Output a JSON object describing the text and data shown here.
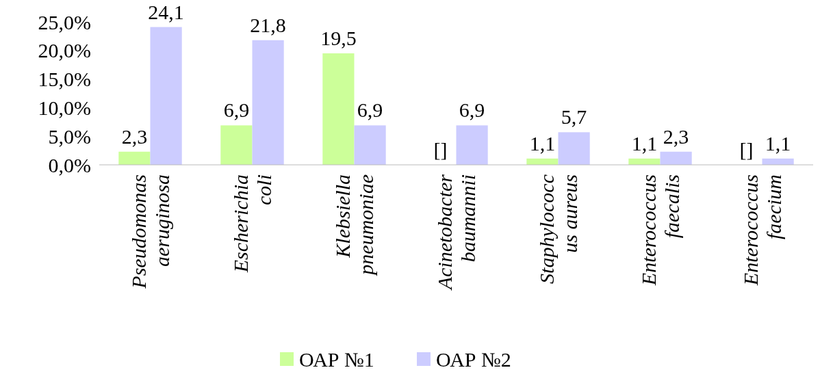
{
  "chart_data": {
    "type": "bar",
    "categories": [
      "Pseudomonas\naeruginosa",
      "Escherichia\ncoli",
      "Klebsiella\npneumoniae",
      "Acinetobacter\nbaumannii",
      "Staphylococc\nus aureus",
      "Enterococcus\nfaecalis",
      "Enterococcus\nfaecium"
    ],
    "series": [
      {
        "name": "ОАР №1",
        "color": "#ccff99",
        "values": [
          2.3,
          6.9,
          19.5,
          0,
          1.1,
          1.1,
          0
        ],
        "value_labels": [
          "2,3",
          "6,9",
          "19,5",
          "[]",
          "1,1",
          "1,1",
          "[]"
        ]
      },
      {
        "name": "ОАР №2",
        "color": "#ccccff",
        "values": [
          24.1,
          21.8,
          6.9,
          6.9,
          5.7,
          2.3,
          1.1
        ],
        "value_labels": [
          "24,1",
          "21,8",
          "6,9",
          "6,9",
          "5,7",
          "2,3",
          "1,1"
        ]
      }
    ],
    "ylim": [
      0,
      25
    ],
    "yticks": [
      {
        "value": 0,
        "label": "0,0%"
      },
      {
        "value": 5,
        "label": "5,0%"
      },
      {
        "value": 10,
        "label": "10,0%"
      },
      {
        "value": 15,
        "label": "15,0%"
      },
      {
        "value": 20,
        "label": "20,0%"
      },
      {
        "value": 25,
        "label": "25,0%"
      }
    ],
    "grid": false,
    "legend": "bottom"
  }
}
